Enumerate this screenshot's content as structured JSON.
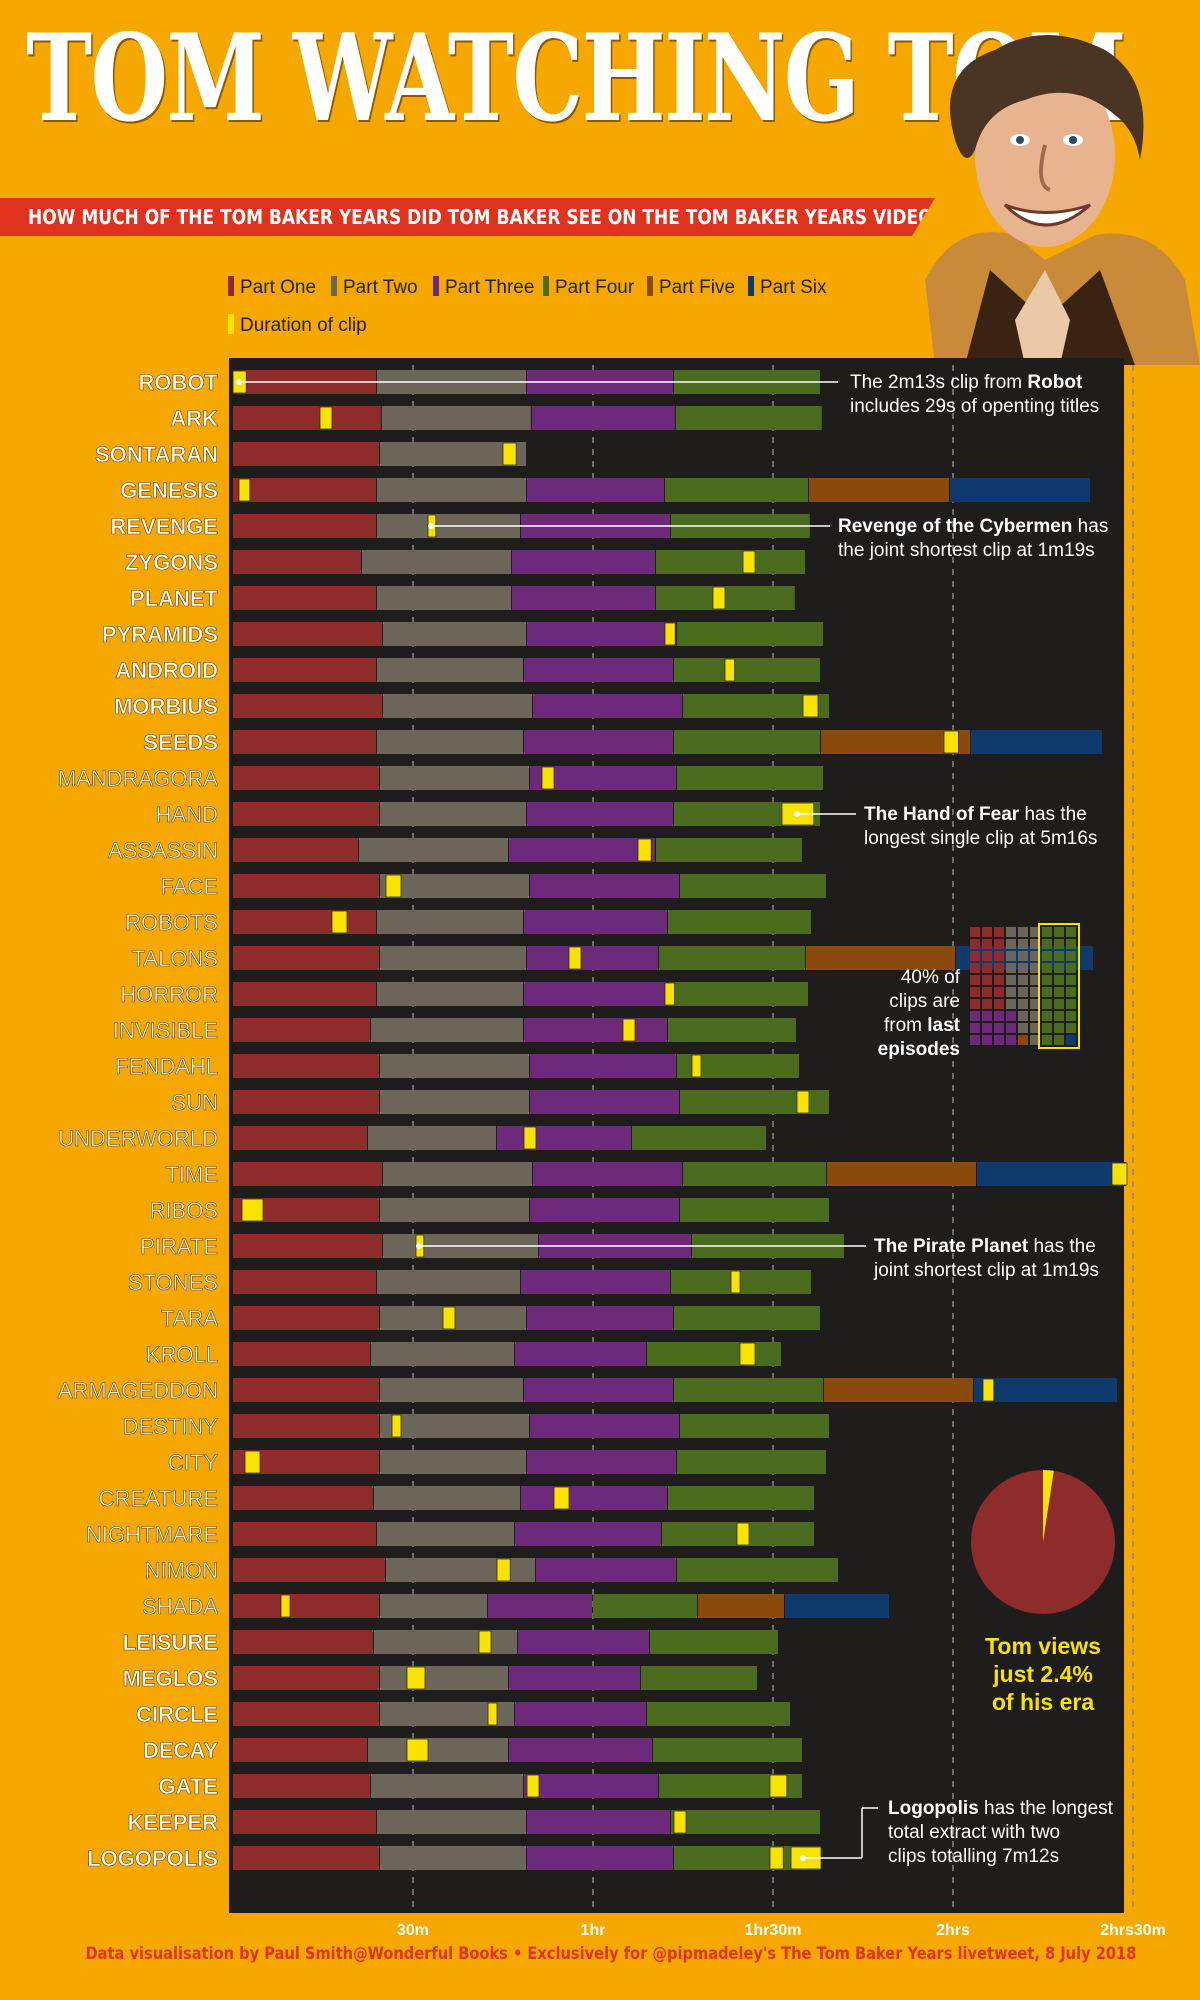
{
  "header": {
    "title": "TOM WATCHING TOM",
    "subtitle": "HOW MUCH OF THE TOM BAKER YEARS DID TOM BAKER SEE ON THE TOM BAKER YEARS VIDEO?"
  },
  "legend": [
    {
      "label": "Part One",
      "color": "#8E2B2B"
    },
    {
      "label": "Part Two",
      "color": "#6B6659"
    },
    {
      "label": "Part Three",
      "color": "#6E2A7A"
    },
    {
      "label": "Part Four",
      "color": "#4A6A1E"
    },
    {
      "label": "Part Five",
      "color": "#8A4A0C"
    },
    {
      "label": "Part Six",
      "color": "#0E3A6E"
    },
    {
      "label": "Duration of clip",
      "color": "#F8E300"
    }
  ],
  "annotations": {
    "robot": {
      "line1_pre": "The 2m13s clip from ",
      "line1_bold": "Robot",
      "line2": "includes 29s of openting titles"
    },
    "revenge": {
      "line1_bold": "Revenge of the Cybermen",
      "line1_post": " has",
      "line2": "the joint shortest clip at 1m19s"
    },
    "hand": {
      "line1_bold": "The Hand of Fear",
      "line1_post": " has the",
      "line2": "longest single clip at 5m16s"
    },
    "pirate": {
      "line1_bold": "The Pirate Planet",
      "line1_post": " has the",
      "line2": "joint shortest clip at 1m19s"
    },
    "last": {
      "line1": "40% of",
      "line2": "clips are",
      "line3_pre": "from ",
      "line3_bold": "last",
      "line4": "episodes"
    },
    "pie": {
      "line1": "Tom views",
      "line2_pre": "just ",
      "line2_bold": "2.4%",
      "line3": "of his era",
      "percent": 2.4
    },
    "logopolis": {
      "line1_bold": "Logopolis",
      "line1_post": " has the longest",
      "line2": "total extract with two",
      "line3": "clips totalling 7m12s"
    }
  },
  "footer": "Data visualisation by Paul Smith@Wonderful Books • Exclusively for @pipmadeley's The Tom Baker Years livetweet, 8 July 2018",
  "chart_data": {
    "type": "bar",
    "orientation": "horizontal-stacked",
    "x_unit": "minutes",
    "xlim": [
      0,
      150
    ],
    "x_ticks": [
      {
        "value": 30,
        "label": "30m"
      },
      {
        "value": 60,
        "label": "1hr"
      },
      {
        "value": 90,
        "label": "1hr30m"
      },
      {
        "value": 120,
        "label": "2hrs"
      },
      {
        "value": 150,
        "label": "2hrs30m"
      }
    ],
    "stories": [
      {
        "name": "ROBOT",
        "parts": [
          24,
          25,
          24.5,
          24.5
        ],
        "clips": [
          [
            0,
            2.2
          ]
        ]
      },
      {
        "name": "ARK",
        "parts": [
          24.8,
          25,
          24,
          24.5
        ],
        "clips": [
          [
            14.5,
            2
          ]
        ]
      },
      {
        "name": "SONTARAN",
        "parts": [
          24.5,
          24.5
        ],
        "clips": [
          [
            45,
            2.2
          ]
        ]
      },
      {
        "name": "GENESIS",
        "parts": [
          24,
          25,
          23,
          24,
          23.5,
          23.5
        ],
        "clips": [
          [
            1,
            1.8
          ]
        ]
      },
      {
        "name": "REVENGE",
        "parts": [
          24,
          24,
          25,
          23.3
        ],
        "clips": [
          [
            32.5,
            1.3
          ]
        ]
      },
      {
        "name": "ZYGONS",
        "parts": [
          21.5,
          25,
          24,
          25
        ],
        "clips": [
          [
            85,
            2
          ]
        ]
      },
      {
        "name": "PLANET",
        "parts": [
          24,
          22.5,
          24,
          23.3
        ],
        "clips": [
          [
            80,
            2
          ]
        ]
      },
      {
        "name": "PYRAMIDS",
        "parts": [
          25,
          24,
          25,
          24.5
        ],
        "clips": [
          [
            72,
            1.7
          ]
        ]
      },
      {
        "name": "ANDROID",
        "parts": [
          24,
          24.5,
          25,
          24.5
        ],
        "clips": [
          [
            82,
            1.6
          ]
        ]
      },
      {
        "name": "MORBIUS",
        "parts": [
          25,
          25,
          25,
          24.5
        ],
        "clips": [
          [
            95,
            2.5
          ]
        ]
      },
      {
        "name": "SEEDS",
        "parts": [
          24,
          24.5,
          25,
          24.5,
          25,
          22
        ],
        "clips": [
          [
            118.5,
            2.4
          ]
        ]
      },
      {
        "name": "MANDRAGORA",
        "parts": [
          24.5,
          25,
          24.5,
          24.5
        ],
        "clips": [
          [
            51.5,
            2
          ]
        ]
      },
      {
        "name": "HAND",
        "parts": [
          24.5,
          24.5,
          24.5,
          24.5
        ],
        "clips": [
          [
            91.5,
            5.3
          ]
        ]
      },
      {
        "name": "ASSASSIN",
        "parts": [
          21,
          25,
          24.5,
          24.5
        ],
        "clips": [
          [
            67.5,
            2.2
          ]
        ]
      },
      {
        "name": "FACE",
        "parts": [
          24.5,
          25,
          25,
          24.5
        ],
        "clips": [
          [
            25.5,
            2.5
          ]
        ]
      },
      {
        "name": "ROBOTS",
        "parts": [
          24,
          24.5,
          24,
          24
        ],
        "clips": [
          [
            16.5,
            2.5
          ]
        ]
      },
      {
        "name": "TALONS",
        "parts": [
          24.5,
          24.5,
          22,
          24.5,
          25,
          23
        ],
        "clips": [
          [
            56,
            2
          ]
        ]
      },
      {
        "name": "HORROR",
        "parts": [
          24,
          24.5,
          24,
          23.5
        ],
        "clips": [
          [
            72,
            1.6
          ]
        ]
      },
      {
        "name": "INVISIBLE",
        "parts": [
          23,
          25.5,
          24,
          21.5
        ],
        "clips": [
          [
            65,
            2
          ]
        ]
      },
      {
        "name": "FENDAHL",
        "parts": [
          24.5,
          25,
          24.5,
          20.5
        ],
        "clips": [
          [
            76.5,
            1.5
          ]
        ]
      },
      {
        "name": "SUN",
        "parts": [
          24.5,
          25,
          25,
          25
        ],
        "clips": [
          [
            94,
            2
          ]
        ]
      },
      {
        "name": "UNDERWORLD",
        "parts": [
          22.5,
          21.5,
          22.5,
          22.5
        ],
        "clips": [
          [
            48.5,
            2
          ]
        ]
      },
      {
        "name": "TIME",
        "parts": [
          25,
          25,
          25,
          24,
          25,
          25
        ],
        "clips": [
          [
            146.5,
            2.5
          ]
        ]
      },
      {
        "name": "RIBOS",
        "parts": [
          24.5,
          25,
          25,
          25
        ],
        "clips": [
          [
            1.5,
            3.5
          ]
        ]
      },
      {
        "name": "PIRATE",
        "parts": [
          25,
          26,
          25.5,
          25.5
        ],
        "clips": [
          [
            30.5,
            1.3
          ]
        ]
      },
      {
        "name": "STONES",
        "parts": [
          24,
          24,
          25,
          23.5
        ],
        "clips": [
          [
            83,
            1.5
          ]
        ]
      },
      {
        "name": "TARA",
        "parts": [
          24.5,
          24.5,
          24.5,
          24.5
        ],
        "clips": [
          [
            35,
            2
          ]
        ]
      },
      {
        "name": "KROLL",
        "parts": [
          23,
          24,
          22,
          22.5
        ],
        "clips": [
          [
            84.5,
            2.5
          ]
        ]
      },
      {
        "name": "ARMAGEDDON",
        "parts": [
          24.5,
          24,
          25,
          25,
          25,
          24
        ],
        "clips": [
          [
            125,
            1.8
          ]
        ]
      },
      {
        "name": "DESTINY",
        "parts": [
          24.5,
          25,
          25,
          25
        ],
        "clips": [
          [
            26.5,
            1.5
          ]
        ]
      },
      {
        "name": "CITY",
        "parts": [
          24.5,
          24.5,
          25,
          25
        ],
        "clips": [
          [
            2,
            2.5
          ]
        ]
      },
      {
        "name": "CREATURE",
        "parts": [
          23.5,
          24.5,
          24.5,
          24.5
        ],
        "clips": [
          [
            53.5,
            2.5
          ]
        ]
      },
      {
        "name": "NIGHTMARE",
        "parts": [
          24,
          23,
          24.5,
          25.5
        ],
        "clips": [
          [
            84,
            2
          ]
        ]
      },
      {
        "name": "NIMON",
        "parts": [
          25.5,
          25,
          23.5,
          27
        ],
        "clips": [
          [
            44,
            2.2
          ]
        ]
      },
      {
        "name": "SHADA",
        "parts": [
          24.5,
          18,
          17.5,
          17.5,
          14.5,
          17.5
        ],
        "clips": [
          [
            8,
            1.5
          ]
        ]
      },
      {
        "name": "LEISURE",
        "parts": [
          23.5,
          24,
          22,
          21.5
        ],
        "clips": [
          [
            41,
            2
          ]
        ]
      },
      {
        "name": "MEGLOS",
        "parts": [
          24.5,
          21.5,
          22,
          19.5
        ],
        "clips": [
          [
            29,
            3
          ]
        ]
      },
      {
        "name": "CIRCLE",
        "parts": [
          24.5,
          22.5,
          22,
          24
        ],
        "clips": [
          [
            42.5,
            1.5
          ]
        ]
      },
      {
        "name": "DECAY",
        "parts": [
          22.5,
          23.5,
          24,
          25
        ],
        "clips": [
          [
            29,
            3.5
          ]
        ]
      },
      {
        "name": "GATE",
        "parts": [
          23,
          25.5,
          22.5,
          24
        ],
        "clips": [
          [
            49,
            2
          ],
          [
            89.5,
            2.8
          ]
        ]
      },
      {
        "name": "KEEPER",
        "parts": [
          24,
          25,
          24,
          25
        ],
        "clips": [
          [
            73.5,
            2
          ]
        ]
      },
      {
        "name": "LOGOPOLIS",
        "parts": [
          24.5,
          24.5,
          24.5,
          24.5
        ],
        "clips": [
          [
            89.5,
            2.2
          ],
          [
            93,
            5
          ]
        ]
      }
    ]
  }
}
